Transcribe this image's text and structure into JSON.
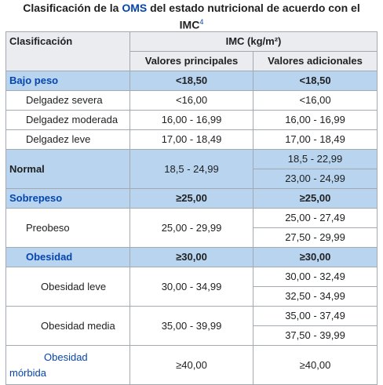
{
  "caption": {
    "line1_prefix": "Clasificación de la ",
    "line1_link": "OMS",
    "line1_suffix": " del estado nutricional de acuerdo con el",
    "line2": "IMC",
    "footnote": "4"
  },
  "header": {
    "col1": "Clasificación",
    "col_group": "IMC (kg/m²)",
    "sub1": "Valores principales",
    "sub2": "Valores adicionales"
  },
  "rows": {
    "bajo_peso": {
      "label": "Bajo peso",
      "main": "<18,50",
      "additional": "<18,50"
    },
    "delgadez_severa": {
      "label": "Delgadez severa",
      "main": "<16,00",
      "additional": "<16,00"
    },
    "delgadez_moderada": {
      "label": "Delgadez moderada",
      "main": "16,00 - 16,99",
      "additional": "16,00 - 16,99"
    },
    "delgadez_leve": {
      "label": "Delgadez leve",
      "main": "17,00 - 18,49",
      "additional": "17,00 - 18,49"
    },
    "normal": {
      "label": "Normal",
      "main": "18,5 - 24,99",
      "additional_1": "18,5 - 22,99",
      "additional_2": "23,00 - 24,99"
    },
    "sobrepeso": {
      "label": "Sobrepeso",
      "main": "≥25,00",
      "additional": "≥25,00"
    },
    "preobeso": {
      "label": "Preobeso",
      "main": "25,00 - 29,99",
      "additional_1": "25,00 - 27,49",
      "additional_2": "27,50 - 29,99"
    },
    "obesidad": {
      "label": "Obesidad",
      "main": "≥30,00",
      "additional": "≥30,00"
    },
    "obesidad_leve": {
      "label": "Obesidad leve",
      "main": "30,00 - 34,99",
      "additional_1": "30,00 - 32,49",
      "additional_2": "32,50 - 34,99"
    },
    "obesidad_media": {
      "label": "Obesidad media",
      "main": "35,00 - 39,99",
      "additional_1": "35,00 - 37,49",
      "additional_2": "37,50 - 39,99"
    },
    "obesidad_morbida": {
      "label_1": "Obesidad",
      "label_2": "mórbida",
      "main": "≥40,00",
      "additional": "≥40,00"
    }
  },
  "colors": {
    "category_bg": "#b8d4ee",
    "header_bg": "#eaecf0",
    "link": "#0645ad",
    "border": "#a2a9b1"
  }
}
